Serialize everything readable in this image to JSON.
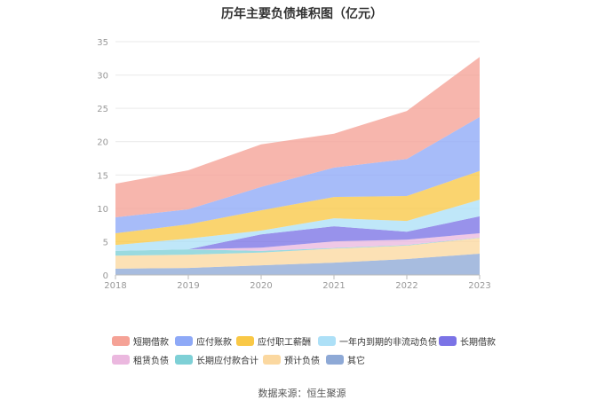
{
  "source": "数据来源：恒生聚源",
  "chart_data": {
    "type": "area",
    "stacked": true,
    "title": "历年主要负债堆积图（亿元）",
    "xlabel": "",
    "ylabel": "",
    "categories": [
      "2018",
      "2019",
      "2020",
      "2021",
      "2022",
      "2023"
    ],
    "ylim": [
      0,
      35
    ],
    "yticks": [
      0,
      5,
      10,
      15,
      20,
      25,
      30,
      35
    ],
    "grid": true,
    "legend_position": "bottom",
    "series": [
      {
        "name": "短期借款",
        "color": "#F5A296",
        "values": [
          5.05,
          5.85,
          6.4,
          5.1,
          7.2,
          9.0
        ]
      },
      {
        "name": "应付账款",
        "color": "#8EA9F7",
        "values": [
          2.4,
          2.25,
          3.5,
          4.4,
          5.55,
          8.1
        ]
      },
      {
        "name": "应付职工薪酬",
        "color": "#F9C846",
        "values": [
          1.75,
          2.15,
          3.05,
          3.2,
          3.75,
          4.3
        ]
      },
      {
        "name": "一年内到期的非流动负债",
        "color": "#ADE0F7",
        "values": [
          0.9,
          1.6,
          0.55,
          1.2,
          1.6,
          2.5
        ]
      },
      {
        "name": "长期借款",
        "color": "#7B73E6",
        "values": [
          0,
          0,
          2.0,
          2.25,
          1.2,
          2.55
        ]
      },
      {
        "name": "租赁负债",
        "color": "#EBB8DF",
        "values": [
          0,
          0,
          0.5,
          1.0,
          0.8,
          0.65
        ]
      },
      {
        "name": "长期应付款合计",
        "color": "#7ED0D6",
        "values": [
          0.7,
          0.8,
          0.25,
          0.1,
          0.1,
          0.05
        ]
      },
      {
        "name": "预计负债",
        "color": "#FBD8A0",
        "values": [
          1.95,
          2.0,
          1.9,
          2.1,
          2.0,
          2.35
        ]
      },
      {
        "name": "其它",
        "color": "#8EA9D6",
        "values": [
          0.95,
          1.05,
          1.45,
          1.85,
          2.4,
          3.2
        ]
      }
    ]
  }
}
